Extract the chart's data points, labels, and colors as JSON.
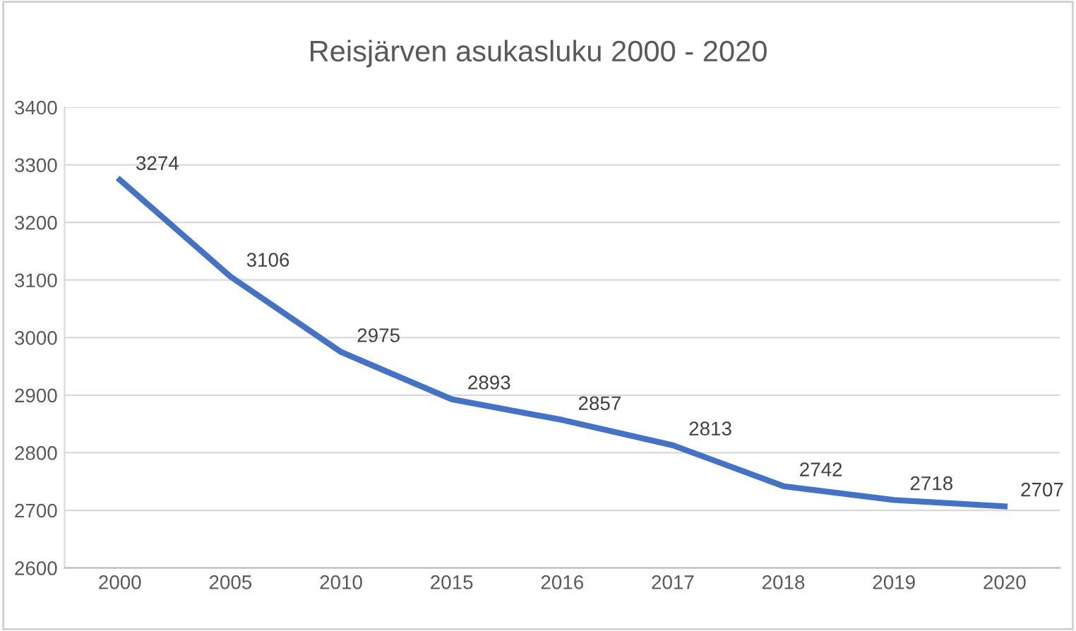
{
  "chart_data": {
    "type": "line",
    "title": "Reisjärven asukasluku 2000 - 2020",
    "categories": [
      "2000",
      "2005",
      "2010",
      "2015",
      "2016",
      "2017",
      "2018",
      "2019",
      "2020"
    ],
    "series": [
      {
        "color": "#4472c4",
        "values": [
          3274,
          3106,
          2975,
          2893,
          2857,
          2813,
          2742,
          2718,
          2707
        ]
      }
    ],
    "ylim": [
      2600,
      3400
    ],
    "yticks": [
      2600,
      2700,
      2800,
      2900,
      3000,
      3100,
      3200,
      3300,
      3400
    ],
    "grid": "y",
    "data_labels": true,
    "marker": "none",
    "line_style": "solid"
  }
}
